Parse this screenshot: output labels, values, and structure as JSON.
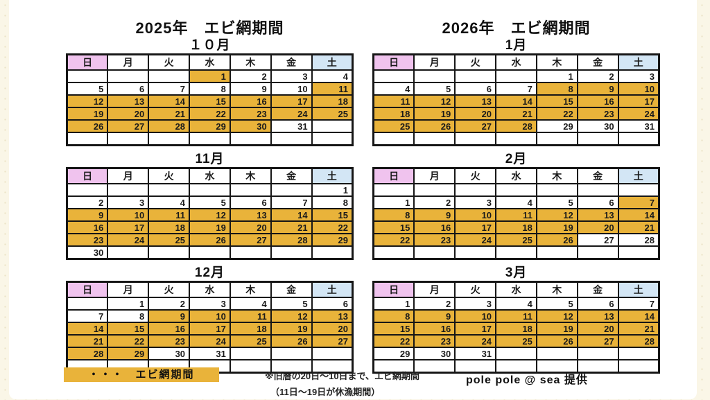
{
  "titles": {
    "left": "2025年　エビ網期間",
    "right": "2026年　エビ網期間"
  },
  "weekdays": [
    "日",
    "月",
    "火",
    "水",
    "木",
    "金",
    "土"
  ],
  "colors": {
    "highlight": "#e9b33a",
    "sunday_header": "#f0c3ee",
    "saturday_header": "#d3e6f5",
    "grid_border": "#161616",
    "page_margin": "#faf6e7"
  },
  "calendars": [
    {
      "id": "2025-10",
      "column": "left",
      "label": "１０月",
      "rows": [
        [
          [
            "",
            0
          ],
          [
            "",
            0
          ],
          [
            "",
            0
          ],
          [
            "1",
            1
          ],
          [
            "2",
            0
          ],
          [
            "3",
            0
          ],
          [
            "4",
            0
          ]
        ],
        [
          [
            "5",
            0
          ],
          [
            "6",
            0
          ],
          [
            "7",
            0
          ],
          [
            "8",
            0
          ],
          [
            "9",
            0
          ],
          [
            "10",
            0
          ],
          [
            "11",
            1
          ]
        ],
        [
          [
            "12",
            1
          ],
          [
            "13",
            1
          ],
          [
            "14",
            1
          ],
          [
            "15",
            1
          ],
          [
            "16",
            1
          ],
          [
            "17",
            1
          ],
          [
            "18",
            1
          ]
        ],
        [
          [
            "19",
            1
          ],
          [
            "20",
            1
          ],
          [
            "21",
            1
          ],
          [
            "22",
            1
          ],
          [
            "23",
            1
          ],
          [
            "24",
            1
          ],
          [
            "25",
            1
          ]
        ],
        [
          [
            "26",
            1
          ],
          [
            "27",
            1
          ],
          [
            "28",
            1
          ],
          [
            "29",
            1
          ],
          [
            "30",
            1
          ],
          [
            "31",
            0
          ],
          [
            "",
            0
          ]
        ],
        [
          [
            "",
            0
          ],
          [
            "",
            0
          ],
          [
            "",
            0
          ],
          [
            "",
            0
          ],
          [
            "",
            0
          ],
          [
            "",
            0
          ],
          [
            "",
            0
          ]
        ]
      ]
    },
    {
      "id": "2025-11",
      "column": "left",
      "label": "11月",
      "rows": [
        [
          [
            "",
            0
          ],
          [
            "",
            0
          ],
          [
            "",
            0
          ],
          [
            "",
            0
          ],
          [
            "",
            0
          ],
          [
            "",
            0
          ],
          [
            "1",
            0
          ]
        ],
        [
          [
            "2",
            0
          ],
          [
            "3",
            0
          ],
          [
            "4",
            0
          ],
          [
            "5",
            0
          ],
          [
            "6",
            0
          ],
          [
            "7",
            0
          ],
          [
            "8",
            0
          ]
        ],
        [
          [
            "9",
            1
          ],
          [
            "10",
            1
          ],
          [
            "11",
            1
          ],
          [
            "12",
            1
          ],
          [
            "13",
            1
          ],
          [
            "14",
            1
          ],
          [
            "15",
            1
          ]
        ],
        [
          [
            "16",
            1
          ],
          [
            "17",
            1
          ],
          [
            "18",
            1
          ],
          [
            "19",
            1
          ],
          [
            "20",
            1
          ],
          [
            "21",
            1
          ],
          [
            "22",
            1
          ]
        ],
        [
          [
            "23",
            1
          ],
          [
            "24",
            1
          ],
          [
            "25",
            1
          ],
          [
            "26",
            1
          ],
          [
            "27",
            1
          ],
          [
            "28",
            1
          ],
          [
            "29",
            1
          ]
        ],
        [
          [
            "30",
            0
          ],
          [
            "",
            0
          ],
          [
            "",
            0
          ],
          [
            "",
            0
          ],
          [
            "",
            0
          ],
          [
            "",
            0
          ],
          [
            "",
            0
          ]
        ]
      ]
    },
    {
      "id": "2025-12",
      "column": "left",
      "label": "12月",
      "rows": [
        [
          [
            "",
            0
          ],
          [
            "1",
            0
          ],
          [
            "2",
            0
          ],
          [
            "3",
            0
          ],
          [
            "4",
            0
          ],
          [
            "5",
            0
          ],
          [
            "6",
            0
          ]
        ],
        [
          [
            "7",
            0
          ],
          [
            "8",
            0
          ],
          [
            "9",
            1
          ],
          [
            "10",
            1
          ],
          [
            "11",
            1
          ],
          [
            "12",
            1
          ],
          [
            "13",
            1
          ]
        ],
        [
          [
            "14",
            1
          ],
          [
            "15",
            1
          ],
          [
            "16",
            1
          ],
          [
            "17",
            1
          ],
          [
            "18",
            1
          ],
          [
            "19",
            1
          ],
          [
            "20",
            1
          ]
        ],
        [
          [
            "21",
            1
          ],
          [
            "22",
            1
          ],
          [
            "23",
            1
          ],
          [
            "24",
            1
          ],
          [
            "25",
            1
          ],
          [
            "26",
            1
          ],
          [
            "27",
            1
          ]
        ],
        [
          [
            "28",
            1
          ],
          [
            "29",
            1
          ],
          [
            "30",
            0
          ],
          [
            "31",
            0
          ],
          [
            "",
            0
          ],
          [
            "",
            0
          ],
          [
            "",
            0
          ]
        ],
        [
          [
            "",
            0
          ],
          [
            "",
            0
          ],
          [
            "",
            0
          ],
          [
            "",
            0
          ],
          [
            "",
            0
          ],
          [
            "",
            0
          ],
          [
            "",
            0
          ]
        ]
      ]
    },
    {
      "id": "2026-01",
      "column": "right",
      "label": "1月",
      "rows": [
        [
          [
            "",
            0
          ],
          [
            "",
            0
          ],
          [
            "",
            0
          ],
          [
            "",
            0
          ],
          [
            "1",
            0
          ],
          [
            "2",
            0
          ],
          [
            "3",
            0
          ]
        ],
        [
          [
            "4",
            0
          ],
          [
            "5",
            0
          ],
          [
            "6",
            0
          ],
          [
            "7",
            0
          ],
          [
            "8",
            1
          ],
          [
            "9",
            1
          ],
          [
            "10",
            1
          ]
        ],
        [
          [
            "11",
            1
          ],
          [
            "12",
            1
          ],
          [
            "13",
            1
          ],
          [
            "14",
            1
          ],
          [
            "15",
            1
          ],
          [
            "16",
            1
          ],
          [
            "17",
            1
          ]
        ],
        [
          [
            "18",
            1
          ],
          [
            "19",
            1
          ],
          [
            "20",
            1
          ],
          [
            "21",
            1
          ],
          [
            "22",
            1
          ],
          [
            "23",
            1
          ],
          [
            "24",
            1
          ]
        ],
        [
          [
            "25",
            1
          ],
          [
            "26",
            1
          ],
          [
            "27",
            1
          ],
          [
            "28",
            1
          ],
          [
            "29",
            0
          ],
          [
            "30",
            0
          ],
          [
            "31",
            0
          ]
        ],
        [
          [
            "",
            0
          ],
          [
            "",
            0
          ],
          [
            "",
            0
          ],
          [
            "",
            0
          ],
          [
            "",
            0
          ],
          [
            "",
            0
          ],
          [
            "",
            0
          ]
        ]
      ]
    },
    {
      "id": "2026-02",
      "column": "right",
      "label": "2月",
      "rows": [
        [
          [
            "",
            0
          ],
          [
            "",
            0
          ],
          [
            "",
            0
          ],
          [
            "",
            0
          ],
          [
            "",
            0
          ],
          [
            "",
            0
          ],
          [
            "",
            0
          ]
        ],
        [
          [
            "1",
            0
          ],
          [
            "2",
            0
          ],
          [
            "3",
            0
          ],
          [
            "4",
            0
          ],
          [
            "5",
            0
          ],
          [
            "6",
            0
          ],
          [
            "7",
            1
          ]
        ],
        [
          [
            "8",
            1
          ],
          [
            "9",
            1
          ],
          [
            "10",
            1
          ],
          [
            "11",
            1
          ],
          [
            "12",
            1
          ],
          [
            "13",
            1
          ],
          [
            "14",
            1
          ]
        ],
        [
          [
            "15",
            1
          ],
          [
            "16",
            1
          ],
          [
            "17",
            1
          ],
          [
            "18",
            1
          ],
          [
            "19",
            1
          ],
          [
            "20",
            1
          ],
          [
            "21",
            1
          ]
        ],
        [
          [
            "22",
            1
          ],
          [
            "23",
            1
          ],
          [
            "24",
            1
          ],
          [
            "25",
            1
          ],
          [
            "26",
            1
          ],
          [
            "27",
            0
          ],
          [
            "28",
            0
          ]
        ],
        [
          [
            "",
            0
          ],
          [
            "",
            0
          ],
          [
            "",
            0
          ],
          [
            "",
            0
          ],
          [
            "",
            0
          ],
          [
            "",
            0
          ],
          [
            "",
            0
          ]
        ]
      ]
    },
    {
      "id": "2026-03",
      "column": "right",
      "label": "3月",
      "rows": [
        [
          [
            "1",
            0
          ],
          [
            "2",
            0
          ],
          [
            "3",
            0
          ],
          [
            "4",
            0
          ],
          [
            "5",
            0
          ],
          [
            "6",
            0
          ],
          [
            "7",
            0
          ]
        ],
        [
          [
            "8",
            1
          ],
          [
            "9",
            1
          ],
          [
            "10",
            1
          ],
          [
            "11",
            1
          ],
          [
            "12",
            1
          ],
          [
            "13",
            1
          ],
          [
            "14",
            1
          ]
        ],
        [
          [
            "15",
            1
          ],
          [
            "16",
            1
          ],
          [
            "17",
            1
          ],
          [
            "18",
            1
          ],
          [
            "19",
            1
          ],
          [
            "20",
            1
          ],
          [
            "21",
            1
          ]
        ],
        [
          [
            "22",
            1
          ],
          [
            "23",
            1
          ],
          [
            "24",
            1
          ],
          [
            "25",
            1
          ],
          [
            "26",
            1
          ],
          [
            "27",
            1
          ],
          [
            "28",
            1
          ]
        ],
        [
          [
            "29",
            0
          ],
          [
            "30",
            0
          ],
          [
            "31",
            0
          ],
          [
            "",
            0
          ],
          [
            "",
            0
          ],
          [
            "",
            0
          ],
          [
            "",
            0
          ]
        ],
        [
          [
            "",
            0
          ],
          [
            "",
            0
          ],
          [
            "",
            0
          ],
          [
            "",
            0
          ],
          [
            "",
            0
          ],
          [
            "",
            0
          ],
          [
            "",
            0
          ]
        ]
      ]
    }
  ],
  "legend": {
    "label": "・・・　エビ網期間",
    "note_line1": "※旧暦の20日～10日まで、エビ網期間",
    "note_line2": "（11日～19日が休漁期間）",
    "credit": "pole pole @ sea 提供"
  }
}
